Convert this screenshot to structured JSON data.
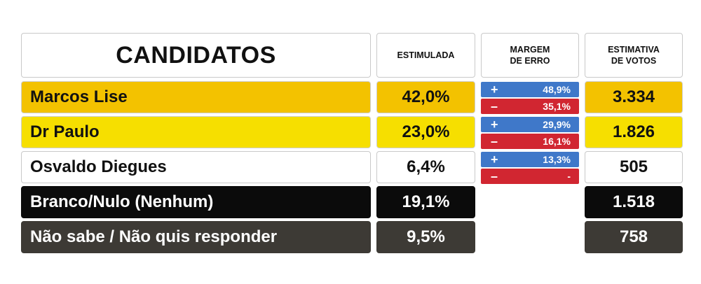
{
  "chart_data": {
    "type": "table",
    "headers": {
      "candidates": "CANDIDATOS",
      "stimulated": "ESTIMULADA",
      "margin": "MARGEM\nDE ERRO",
      "votes": "ESTIMATIVA\nDE VOTOS"
    },
    "rows": [
      {
        "name": "Marcos Lise",
        "stimulated": "42,0%",
        "margin_plus": "48,9%",
        "margin_minus": "35,1%",
        "votes": "3.334",
        "color": "#f3c200"
      },
      {
        "name": "Dr Paulo",
        "stimulated": "23,0%",
        "margin_plus": "29,9%",
        "margin_minus": "16,1%",
        "votes": "1.826",
        "color": "#f6df00"
      },
      {
        "name": "Osvaldo Diegues",
        "stimulated": "6,4%",
        "margin_plus": "13,3%",
        "margin_minus": "-",
        "votes": "505",
        "color": "#ffffff"
      },
      {
        "name": "Branco/Nulo (Nenhum)",
        "stimulated": "19,1%",
        "margin_plus": null,
        "margin_minus": null,
        "votes": "1.518",
        "color": "#0b0b0b"
      },
      {
        "name": "Não sabe / Não quis responder",
        "stimulated": "9,5%",
        "margin_plus": null,
        "margin_minus": null,
        "votes": "758",
        "color": "#3d3a35"
      }
    ],
    "colors": {
      "plus": "#3f78c9",
      "minus": "#d12631"
    },
    "signs": {
      "plus": "+",
      "minus": "–"
    }
  }
}
